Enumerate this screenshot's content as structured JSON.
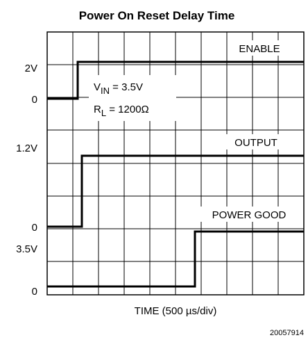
{
  "title": "Power On Reset Delay Time",
  "x_label": "TIME (500 µs/div)",
  "figure_id": "20057914",
  "y_labels": [
    "2V",
    "0",
    "1.2V",
    "0",
    "3.5V",
    "0"
  ],
  "traces": [
    "ENABLE",
    "OUTPUT",
    "POWER GOOD"
  ],
  "conditions": {
    "vin": [
      "V",
      "IN",
      " = 3.5V"
    ],
    "rl": [
      "R",
      "L",
      " = 1200Ω"
    ]
  }
}
